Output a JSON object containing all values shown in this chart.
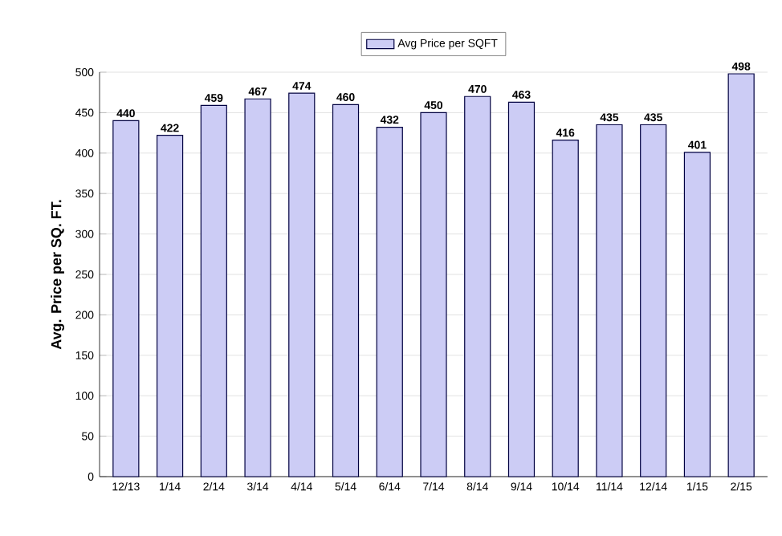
{
  "chart_data": {
    "type": "bar",
    "ylabel": "Avg. Price per SQ. FT.",
    "categories": [
      "12/13",
      "1/14",
      "2/14",
      "3/14",
      "4/14",
      "5/14",
      "6/14",
      "7/14",
      "8/14",
      "9/14",
      "10/14",
      "11/14",
      "12/14",
      "1/15",
      "2/15"
    ],
    "series": [
      {
        "name": "Avg Price per SQFT",
        "color": "#ccccf5",
        "values": [
          440,
          422,
          459,
          467,
          474,
          460,
          432,
          450,
          470,
          463,
          416,
          435,
          435,
          401,
          498
        ]
      }
    ],
    "ylim": [
      0,
      500
    ],
    "yticks": [
      0,
      50,
      100,
      150,
      200,
      250,
      300,
      350,
      400,
      450,
      500
    ],
    "grid": "y",
    "legend": "top",
    "data_labels": true
  }
}
